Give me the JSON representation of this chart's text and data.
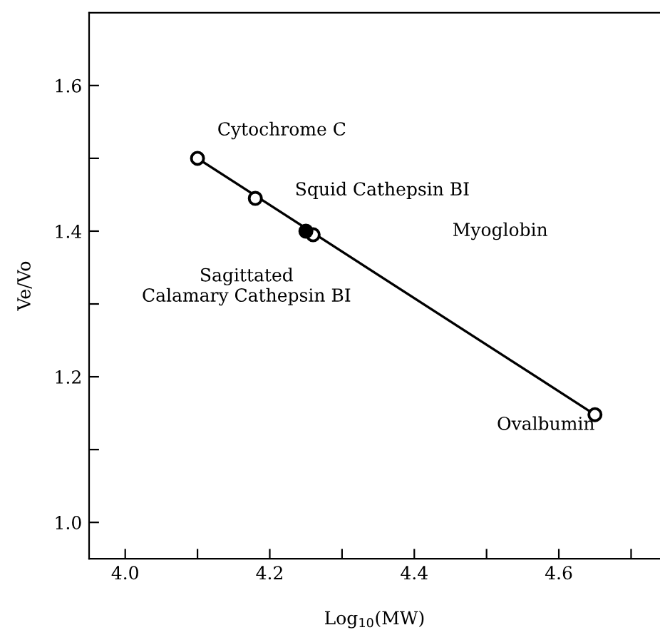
{
  "chart_data": {
    "type": "scatter",
    "xlabel": "Log$_{10}$(MW)",
    "ylabel": "Ve/Vo",
    "xlim": [
      3.95,
      4.74
    ],
    "ylim": [
      0.95,
      1.7
    ],
    "xticks": [
      {
        "value": 4.0,
        "label": "4.0"
      },
      {
        "value": 4.1,
        "label": null
      },
      {
        "value": 4.2,
        "label": "4.2"
      },
      {
        "value": 4.3,
        "label": null
      },
      {
        "value": 4.4,
        "label": "4.4"
      },
      {
        "value": 4.5,
        "label": null
      },
      {
        "value": 4.6,
        "label": "4.6"
      },
      {
        "value": 4.7,
        "label": null
      }
    ],
    "yticks": [
      {
        "value": 1.0,
        "label": "1.0"
      },
      {
        "value": 1.1,
        "label": null
      },
      {
        "value": 1.2,
        "label": "1.2"
      },
      {
        "value": 1.3,
        "label": null
      },
      {
        "value": 1.4,
        "label": "1.4"
      },
      {
        "value": 1.5,
        "label": null
      },
      {
        "value": 1.6,
        "label": "1.6"
      }
    ],
    "grid": false,
    "series": [
      {
        "type": "line",
        "color": "#000000",
        "x": [
          4.1,
          4.65
        ],
        "values": [
          1.5,
          1.148
        ]
      },
      {
        "marker": "circle",
        "color": "#ffffff",
        "x": [
          4.1,
          4.18,
          4.26,
          4.65
        ],
        "values": [
          1.5,
          1.445,
          1.395,
          1.148
        ]
      },
      {
        "marker": "circle",
        "color": "#000000",
        "x": [
          4.25
        ],
        "values": [
          1.4
        ]
      }
    ],
    "annotations": [
      {
        "text": "Cytochrome C",
        "x": 4.1,
        "y": 1.5
      },
      {
        "text": "Squid Cathepsin BI",
        "x": 4.18,
        "y": 1.445
      },
      "Myoglobin",
      {
        "text": "Sagittated\nCalamary Cathepsin BI",
        "x": 4.25,
        "y": 1.4
      },
      "Ovalbumin"
    ]
  }
}
